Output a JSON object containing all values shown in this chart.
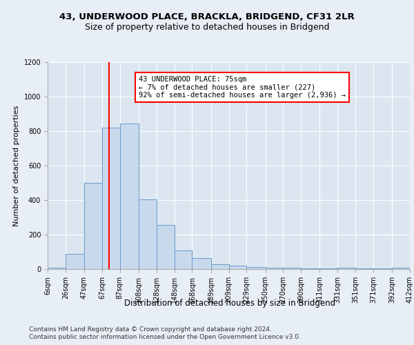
{
  "title_line1": "43, UNDERWOOD PLACE, BRACKLA, BRIDGEND, CF31 2LR",
  "title_line2": "Size of property relative to detached houses in Bridgend",
  "xlabel": "Distribution of detached houses by size in Bridgend",
  "ylabel": "Number of detached properties",
  "bins": [
    6,
    26,
    47,
    67,
    87,
    108,
    128,
    148,
    168,
    189,
    209,
    229,
    250,
    270,
    290,
    311,
    331,
    351,
    371,
    392,
    412
  ],
  "counts": [
    10,
    90,
    500,
    820,
    845,
    405,
    255,
    110,
    65,
    30,
    20,
    12,
    10,
    7,
    5,
    5,
    10,
    3,
    3,
    8
  ],
  "bar_color": "#c9d9ec",
  "bar_edge_color": "#6699cc",
  "red_line_x": 75,
  "annotation_text_line1": "43 UNDERWOOD PLACE: 75sqm",
  "annotation_text_line2": "← 7% of detached houses are smaller (227)",
  "annotation_text_line3": "92% of semi-detached houses are larger (2,936) →",
  "ylim": [
    0,
    1200
  ],
  "yticks": [
    0,
    200,
    400,
    600,
    800,
    1000,
    1200
  ],
  "tick_labels": [
    "6sqm",
    "26sqm",
    "47sqm",
    "67sqm",
    "87sqm",
    "108sqm",
    "128sqm",
    "148sqm",
    "168sqm",
    "189sqm",
    "209sqm",
    "229sqm",
    "250sqm",
    "270sqm",
    "290sqm",
    "311sqm",
    "331sqm",
    "351sqm",
    "371sqm",
    "392sqm",
    "412sqm"
  ],
  "footer_line1": "Contains HM Land Registry data © Crown copyright and database right 2024.",
  "footer_line2": "Contains public sector information licensed under the Open Government Licence v3.0.",
  "grid_color": "#ffffff",
  "bg_color": "#e8eef5",
  "plot_bg_color": "#dce6f0",
  "title_fontsize": 9.5,
  "subtitle_fontsize": 9,
  "ylabel_fontsize": 8,
  "xlabel_fontsize": 8.5,
  "tick_fontsize": 7,
  "footer_fontsize": 6.5
}
